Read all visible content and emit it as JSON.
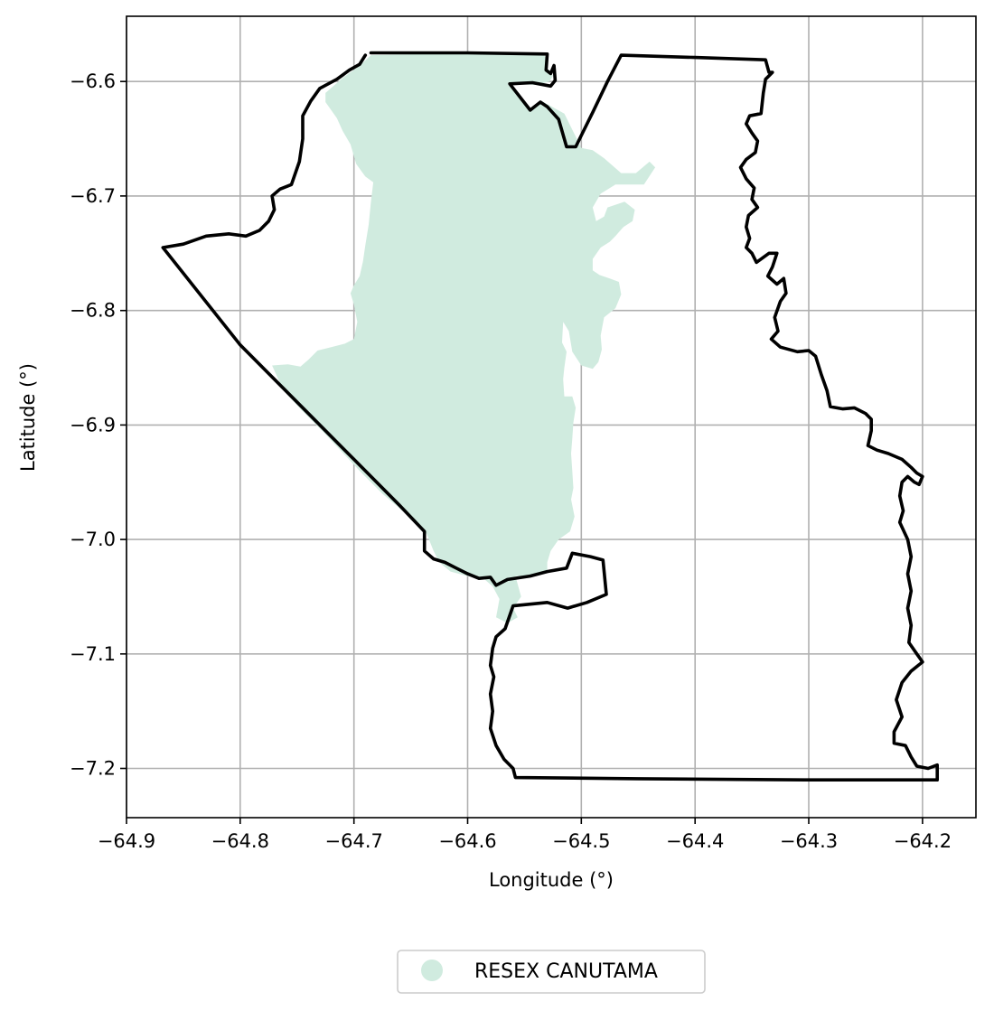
{
  "figure": {
    "xlabel": "Longitude (°)",
    "ylabel": "Latitude (°)",
    "xlim": [
      -64.9,
      -64.153
    ],
    "ylim": [
      -7.243,
      -6.543
    ],
    "x_ticks": [
      -64.9,
      -64.8,
      -64.7,
      -64.6,
      -64.5,
      -64.4,
      -64.3,
      -64.2
    ],
    "y_ticks": [
      -6.6,
      -6.7,
      -6.8,
      -6.9,
      -7.0,
      -7.1,
      -7.2
    ],
    "x_tick_labels": [
      "−64.9",
      "−64.8",
      "−64.7",
      "−64.6",
      "−64.5",
      "−64.4",
      "−64.3",
      "−64.2"
    ],
    "y_tick_labels": [
      "−6.6",
      "−6.7",
      "−6.8",
      "−6.9",
      "−7.0",
      "−7.1",
      "−7.2"
    ],
    "grid": true
  },
  "legend": {
    "placement": "bottom-center",
    "entries": [
      {
        "label": "RESEX CANUTAMA",
        "color": "#d0ebdf"
      }
    ]
  },
  "layers": {
    "protected_area": {
      "name": "RESEX CANUTAMA",
      "fill": "#d0ebdf",
      "coordinates": [
        [
          -64.725,
          -6.61
        ],
        [
          -64.71,
          -6.597
        ],
        [
          -64.696,
          -6.587
        ],
        [
          -64.685,
          -6.577
        ],
        [
          -64.6,
          -6.575
        ],
        [
          -64.535,
          -6.575
        ],
        [
          -64.53,
          -6.58
        ],
        [
          -64.53,
          -6.59
        ],
        [
          -64.525,
          -6.595
        ],
        [
          -64.528,
          -6.6
        ],
        [
          -64.54,
          -6.603
        ],
        [
          -64.565,
          -6.602
        ],
        [
          -64.545,
          -6.625
        ],
        [
          -64.535,
          -6.617
        ],
        [
          -64.515,
          -6.628
        ],
        [
          -64.5,
          -6.658
        ],
        [
          -64.49,
          -6.66
        ],
        [
          -64.48,
          -6.667
        ],
        [
          -64.465,
          -6.68
        ],
        [
          -64.452,
          -6.68
        ],
        [
          -64.44,
          -6.67
        ],
        [
          -64.435,
          -6.675
        ],
        [
          -64.445,
          -6.69
        ],
        [
          -64.47,
          -6.69
        ],
        [
          -64.483,
          -6.698
        ],
        [
          -64.49,
          -6.71
        ],
        [
          -64.487,
          -6.722
        ],
        [
          -64.48,
          -6.718
        ],
        [
          -64.477,
          -6.71
        ],
        [
          -64.462,
          -6.705
        ],
        [
          -64.453,
          -6.712
        ],
        [
          -64.455,
          -6.722
        ],
        [
          -64.463,
          -6.727
        ],
        [
          -64.47,
          -6.735
        ],
        [
          -64.475,
          -6.74
        ],
        [
          -64.483,
          -6.745
        ],
        [
          -64.49,
          -6.755
        ],
        [
          -64.49,
          -6.765
        ],
        [
          -64.484,
          -6.769
        ],
        [
          -64.475,
          -6.772
        ],
        [
          -64.467,
          -6.775
        ],
        [
          -64.465,
          -6.786
        ],
        [
          -64.47,
          -6.798
        ],
        [
          -64.48,
          -6.806
        ],
        [
          -64.483,
          -6.822
        ],
        [
          -64.482,
          -6.834
        ],
        [
          -64.485,
          -6.845
        ],
        [
          -64.49,
          -6.851
        ],
        [
          -64.5,
          -6.848
        ],
        [
          -64.508,
          -6.836
        ],
        [
          -64.511,
          -6.818
        ],
        [
          -64.516,
          -6.81
        ],
        [
          -64.517,
          -6.828
        ],
        [
          -64.513,
          -6.836
        ],
        [
          -64.515,
          -6.85
        ],
        [
          -64.516,
          -6.86
        ],
        [
          -64.515,
          -6.875
        ],
        [
          -64.508,
          -6.875
        ],
        [
          -64.505,
          -6.885
        ],
        [
          -64.507,
          -6.898
        ],
        [
          -64.508,
          -6.912
        ],
        [
          -64.509,
          -6.925
        ],
        [
          -64.508,
          -6.94
        ],
        [
          -64.507,
          -6.955
        ],
        [
          -64.509,
          -6.965
        ],
        [
          -64.506,
          -6.98
        ],
        [
          -64.51,
          -6.993
        ],
        [
          -64.52,
          -7.0
        ],
        [
          -64.527,
          -7.01
        ],
        [
          -64.53,
          -7.02
        ],
        [
          -64.53,
          -7.027
        ],
        [
          -64.547,
          -7.032
        ],
        [
          -64.558,
          -7.032
        ],
        [
          -64.553,
          -7.05
        ],
        [
          -64.56,
          -7.06
        ],
        [
          -64.556,
          -7.068
        ],
        [
          -64.565,
          -7.073
        ],
        [
          -64.575,
          -7.068
        ],
        [
          -64.572,
          -7.052
        ],
        [
          -64.578,
          -7.041
        ],
        [
          -64.585,
          -7.035
        ],
        [
          -64.6,
          -7.032
        ],
        [
          -64.615,
          -7.028
        ],
        [
          -64.625,
          -7.02
        ],
        [
          -64.63,
          -7.01
        ],
        [
          -64.636,
          -6.995
        ],
        [
          -64.655,
          -6.977
        ],
        [
          -64.675,
          -6.96
        ],
        [
          -64.695,
          -6.94
        ],
        [
          -64.712,
          -6.922
        ],
        [
          -64.728,
          -6.905
        ],
        [
          -64.745,
          -6.888
        ],
        [
          -64.762,
          -6.87
        ],
        [
          -64.772,
          -6.848
        ],
        [
          -64.758,
          -6.847
        ],
        [
          -64.747,
          -6.849
        ],
        [
          -64.74,
          -6.843
        ],
        [
          -64.732,
          -6.835
        ],
        [
          -64.72,
          -6.832
        ],
        [
          -64.708,
          -6.829
        ],
        [
          -64.7,
          -6.825
        ],
        [
          -64.697,
          -6.81
        ],
        [
          -64.7,
          -6.795
        ],
        [
          -64.703,
          -6.785
        ],
        [
          -64.7,
          -6.778
        ],
        [
          -64.695,
          -6.77
        ],
        [
          -64.692,
          -6.757
        ],
        [
          -64.69,
          -6.743
        ],
        [
          -64.687,
          -6.725
        ],
        [
          -64.685,
          -6.705
        ],
        [
          -64.683,
          -6.688
        ],
        [
          -64.69,
          -6.683
        ],
        [
          -64.698,
          -6.672
        ],
        [
          -64.703,
          -6.655
        ],
        [
          -64.71,
          -6.643
        ],
        [
          -64.715,
          -6.632
        ],
        [
          -64.72,
          -6.625
        ],
        [
          -64.725,
          -6.618
        ]
      ]
    },
    "boundary": {
      "stroke": "#000000",
      "coordinates": [
        [
          -64.685,
          -6.575
        ],
        [
          -64.6,
          -6.575
        ],
        [
          -64.53,
          -6.576
        ],
        [
          -64.531,
          -6.59
        ],
        [
          -64.527,
          -6.593
        ],
        [
          -64.524,
          -6.586
        ],
        [
          -64.523,
          -6.599
        ],
        [
          -64.527,
          -6.604
        ],
        [
          -64.543,
          -6.601
        ],
        [
          -64.563,
          -6.602
        ],
        [
          -64.545,
          -6.625
        ],
        [
          -64.536,
          -6.618
        ],
        [
          -64.53,
          -6.622
        ],
        [
          -64.52,
          -6.633
        ],
        [
          -64.513,
          -6.657
        ],
        [
          -64.505,
          -6.657
        ],
        [
          -64.49,
          -6.627
        ],
        [
          -64.477,
          -6.6
        ],
        [
          -64.465,
          -6.577
        ],
        [
          -64.4,
          -6.579
        ],
        [
          -64.338,
          -6.581
        ],
        [
          -64.335,
          -6.592
        ],
        [
          -64.332,
          -6.592
        ],
        [
          -64.338,
          -6.598
        ],
        [
          -64.34,
          -6.61
        ],
        [
          -64.342,
          -6.628
        ],
        [
          -64.352,
          -6.63
        ],
        [
          -64.355,
          -6.637
        ],
        [
          -64.35,
          -6.645
        ],
        [
          -64.345,
          -6.652
        ],
        [
          -64.347,
          -6.662
        ],
        [
          -64.355,
          -6.668
        ],
        [
          -64.36,
          -6.675
        ],
        [
          -64.355,
          -6.685
        ],
        [
          -64.348,
          -6.693
        ],
        [
          -64.35,
          -6.703
        ],
        [
          -64.345,
          -6.71
        ],
        [
          -64.353,
          -6.717
        ],
        [
          -64.355,
          -6.727
        ],
        [
          -64.352,
          -6.737
        ],
        [
          -64.355,
          -6.745
        ],
        [
          -64.35,
          -6.75
        ],
        [
          -64.346,
          -6.758
        ],
        [
          -64.335,
          -6.75
        ],
        [
          -64.328,
          -6.75
        ],
        [
          -64.332,
          -6.762
        ],
        [
          -64.336,
          -6.77
        ],
        [
          -64.328,
          -6.777
        ],
        [
          -64.322,
          -6.772
        ],
        [
          -64.32,
          -6.785
        ],
        [
          -64.325,
          -6.792
        ],
        [
          -64.33,
          -6.806
        ],
        [
          -64.327,
          -6.818
        ],
        [
          -64.333,
          -6.825
        ],
        [
          -64.325,
          -6.832
        ],
        [
          -64.31,
          -6.836
        ],
        [
          -64.3,
          -6.835
        ],
        [
          -64.294,
          -6.84
        ],
        [
          -64.289,
          -6.856
        ],
        [
          -64.284,
          -6.87
        ],
        [
          -64.281,
          -6.884
        ],
        [
          -64.27,
          -6.886
        ],
        [
          -64.26,
          -6.885
        ],
        [
          -64.25,
          -6.89
        ],
        [
          -64.245,
          -6.895
        ],
        [
          -64.245,
          -6.905
        ],
        [
          -64.248,
          -6.918
        ],
        [
          -64.24,
          -6.922
        ],
        [
          -64.23,
          -6.925
        ],
        [
          -64.218,
          -6.93
        ],
        [
          -64.21,
          -6.937
        ],
        [
          -64.205,
          -6.942
        ],
        [
          -64.2,
          -6.945
        ],
        [
          -64.203,
          -6.952
        ],
        [
          -64.207,
          -6.95
        ],
        [
          -64.213,
          -6.945
        ],
        [
          -64.218,
          -6.95
        ],
        [
          -64.22,
          -6.962
        ],
        [
          -64.217,
          -6.975
        ],
        [
          -64.22,
          -6.985
        ],
        [
          -64.213,
          -7.0
        ],
        [
          -64.21,
          -7.015
        ],
        [
          -64.213,
          -7.03
        ],
        [
          -64.21,
          -7.045
        ],
        [
          -64.213,
          -7.06
        ],
        [
          -64.21,
          -7.075
        ],
        [
          -64.212,
          -7.09
        ],
        [
          -64.205,
          -7.1
        ],
        [
          -64.2,
          -7.107
        ],
        [
          -64.21,
          -7.115
        ],
        [
          -64.218,
          -7.125
        ],
        [
          -64.223,
          -7.14
        ],
        [
          -64.218,
          -7.155
        ],
        [
          -64.225,
          -7.168
        ],
        [
          -64.225,
          -7.178
        ],
        [
          -64.215,
          -7.18
        ],
        [
          -64.21,
          -7.19
        ],
        [
          -64.205,
          -7.198
        ],
        [
          -64.195,
          -7.2
        ],
        [
          -64.187,
          -7.197
        ],
        [
          -64.187,
          -7.21
        ],
        [
          -64.3,
          -7.21
        ],
        [
          -64.45,
          -7.209
        ],
        [
          -64.558,
          -7.208
        ],
        [
          -64.56,
          -7.2
        ],
        [
          -64.568,
          -7.192
        ],
        [
          -64.575,
          -7.18
        ],
        [
          -64.58,
          -7.165
        ],
        [
          -64.578,
          -7.15
        ],
        [
          -64.58,
          -7.135
        ],
        [
          -64.577,
          -7.12
        ],
        [
          -64.58,
          -7.11
        ],
        [
          -64.578,
          -7.095
        ],
        [
          -64.575,
          -7.085
        ],
        [
          -64.567,
          -7.078
        ],
        [
          -64.56,
          -7.058
        ],
        [
          -64.53,
          -7.055
        ],
        [
          -64.512,
          -7.06
        ],
        [
          -64.495,
          -7.055
        ],
        [
          -64.478,
          -7.048
        ],
        [
          -64.481,
          -7.018
        ],
        [
          -64.492,
          -7.015
        ],
        [
          -64.508,
          -7.012
        ],
        [
          -64.513,
          -7.025
        ],
        [
          -64.53,
          -7.028
        ],
        [
          -64.545,
          -7.032
        ],
        [
          -64.565,
          -7.035
        ],
        [
          -64.575,
          -7.04
        ],
        [
          -64.58,
          -7.033
        ],
        [
          -64.59,
          -7.034
        ],
        [
          -64.6,
          -7.03
        ],
        [
          -64.61,
          -7.025
        ],
        [
          -64.62,
          -7.02
        ],
        [
          -64.63,
          -7.017
        ],
        [
          -64.638,
          -7.01
        ],
        [
          -64.638,
          -6.993
        ],
        [
          -64.66,
          -6.97
        ],
        [
          -64.7,
          -6.93
        ],
        [
          -64.74,
          -6.89
        ],
        [
          -64.8,
          -6.83
        ],
        [
          -64.868,
          -6.745
        ],
        [
          -64.85,
          -6.742
        ],
        [
          -64.83,
          -6.735
        ],
        [
          -64.81,
          -6.733
        ],
        [
          -64.795,
          -6.735
        ],
        [
          -64.783,
          -6.73
        ],
        [
          -64.775,
          -6.722
        ],
        [
          -64.77,
          -6.712
        ],
        [
          -64.772,
          -6.7
        ],
        [
          -64.765,
          -6.694
        ],
        [
          -64.755,
          -6.69
        ],
        [
          -64.748,
          -6.67
        ],
        [
          -64.745,
          -6.65
        ],
        [
          -64.745,
          -6.63
        ],
        [
          -64.738,
          -6.617
        ],
        [
          -64.73,
          -6.606
        ],
        [
          -64.715,
          -6.598
        ],
        [
          -64.704,
          -6.59
        ],
        [
          -64.695,
          -6.585
        ],
        [
          -64.69,
          -6.577
        ]
      ]
    }
  }
}
